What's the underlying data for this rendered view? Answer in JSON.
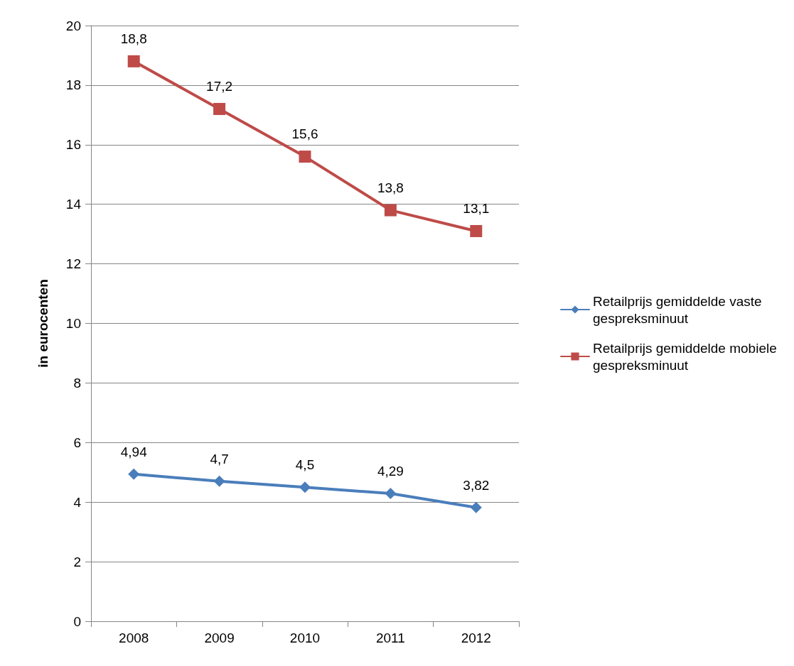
{
  "chart_data": {
    "type": "line",
    "ylabel": "in eurocenten",
    "categories": [
      "2008",
      "2009",
      "2010",
      "2011",
      "2012"
    ],
    "series": [
      {
        "name": "Retailprijs gemiddelde vaste gespreksminuut",
        "color": "#4a7ebb",
        "marker": "diamond",
        "values": [
          4.94,
          4.7,
          4.5,
          4.29,
          3.82
        ],
        "value_labels": [
          "4,94",
          "4,7",
          "4,5",
          "4,29",
          "3,82"
        ]
      },
      {
        "name": "Retailprijs gemiddelde mobiele gespreksminuut",
        "color": "#be4b48",
        "marker": "square",
        "values": [
          18.8,
          17.2,
          15.6,
          13.8,
          13.1
        ],
        "value_labels": [
          "18,8",
          "17,2",
          "15,6",
          "13,8",
          "13,1"
        ]
      }
    ],
    "ylim": [
      0,
      20
    ],
    "yticks": [
      0,
      2,
      4,
      6,
      8,
      10,
      12,
      14,
      16,
      18,
      20
    ],
    "grid": "y",
    "legend": "right",
    "line_style": "solid"
  }
}
